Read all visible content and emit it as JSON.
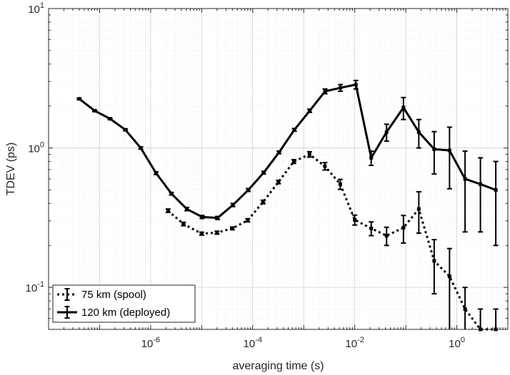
{
  "chart_data": {
    "type": "line",
    "scale": {
      "x": "log",
      "y": "log"
    },
    "xlabel": "averaging time (s)",
    "ylabel": "TDEV (ps)",
    "xlim": [
      1e-08,
      10
    ],
    "ylim": [
      0.05,
      10
    ],
    "grid": true,
    "minor_grid": true,
    "legend_position": "bottom-left",
    "x_tick_values": [
      1e-06,
      0.0001,
      0.01,
      1
    ],
    "x_ticks": [
      {
        "base": "10",
        "exp": "-6"
      },
      {
        "base": "10",
        "exp": "-4"
      },
      {
        "base": "10",
        "exp": "-2"
      },
      {
        "base": "10",
        "exp": "0"
      }
    ],
    "y_tick_values": [
      0.1,
      1,
      10
    ],
    "y_ticks": [
      {
        "base": "10",
        "exp": "-1"
      },
      {
        "base": "10",
        "exp": "0"
      },
      {
        "base": "10",
        "exp": "1"
      }
    ],
    "series": [
      {
        "name": "75 km (spool)",
        "style": "dotted",
        "color": "#000000",
        "x": [
          2.2e-06,
          4.4e-06,
          1e-05,
          2e-05,
          4e-05,
          8e-05,
          0.00016,
          0.00032,
          0.00064,
          0.0013,
          0.0026,
          0.0052,
          0.01,
          0.021,
          0.042,
          0.09,
          0.18,
          0.36,
          0.72,
          1.45,
          2.9,
          5.8
        ],
        "y": [
          0.355,
          0.285,
          0.243,
          0.247,
          0.265,
          0.303,
          0.41,
          0.57,
          0.8,
          0.9,
          0.74,
          0.55,
          0.305,
          0.265,
          0.235,
          0.268,
          0.365,
          0.155,
          0.12,
          0.07,
          0.05,
          0.05
        ],
        "err": [
          0.01,
          0.008,
          0.006,
          0.006,
          0.006,
          0.008,
          0.012,
          0.016,
          0.025,
          0.04,
          0.045,
          0.045,
          0.025,
          0.03,
          0.035,
          0.06,
          0.12,
          0.065,
          0.07,
          0.03,
          0.02,
          0.02
        ]
      },
      {
        "name": "120 km (deployed)",
        "style": "solid",
        "color": "#000000",
        "x": [
          4e-08,
          8e-08,
          1.6e-07,
          3.2e-07,
          6.4e-07,
          1.28e-06,
          2.56e-06,
          5.12e-06,
          1.02e-05,
          2.05e-05,
          4.1e-05,
          8.2e-05,
          0.000164,
          0.000328,
          0.000655,
          0.00131,
          0.00262,
          0.00524,
          0.0105,
          0.021,
          0.042,
          0.09,
          0.18,
          0.36,
          0.72,
          1.45,
          2.9,
          5.8
        ],
        "y": [
          2.25,
          1.85,
          1.62,
          1.35,
          1.0,
          0.66,
          0.47,
          0.365,
          0.32,
          0.315,
          0.39,
          0.5,
          0.665,
          0.93,
          1.35,
          1.85,
          2.55,
          2.7,
          2.85,
          0.85,
          1.3,
          1.95,
          1.3,
          0.98,
          0.96,
          0.6,
          0.55,
          0.5
        ],
        "err": [
          0.03,
          0.02,
          0.02,
          0.02,
          0.02,
          0.015,
          0.01,
          0.01,
          0.008,
          0.008,
          0.01,
          0.012,
          0.015,
          0.02,
          0.03,
          0.05,
          0.1,
          0.15,
          0.2,
          0.1,
          0.18,
          0.35,
          0.3,
          0.33,
          0.45,
          0.35,
          0.3,
          0.3
        ]
      }
    ]
  }
}
